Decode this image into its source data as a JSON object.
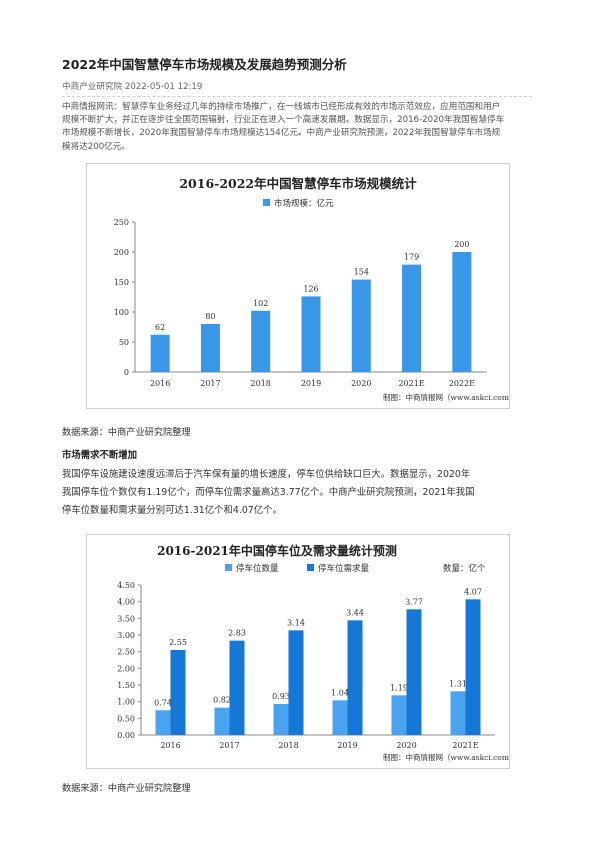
{
  "article": {
    "title": "2022年中国智慧停车市场规模及发展趋势预测分析",
    "meta": "中商产业研究院 2022-05-01 12:19",
    "intro_lines": [
      "中商情报网讯：智慧停车业务经过几年的持续市场推广，在一线城市已经形成有效的市场示范效应，应用范围和用户",
      "规模不断扩大，并正在逐步往全国范围辐射，行业正在进入一个高速发展期。数据显示，2016-2020年我国智慧停车",
      "市场规模不断增长，2020年我国智慧停车市场规模达154亿元。中商产业研究院预测，2022年我国智慧停车市场规",
      "模将达200亿元。"
    ],
    "source1": "数据来源：中商产业研究院整理",
    "section_heading": "市场需求不断增加",
    "section_lines": [
      "我国停车设施建设速度远滞后于汽车保有量的增长速度，停车位供给缺口巨大。数据显示，2020年",
      "我国停车位个数仅有1.19亿个，而停车位需求量高达3.77亿个。中商产业研究院预测，2021年我国",
      "停车位数量和需求量分别可达1.31亿个和4.07亿个。"
    ],
    "source2": "数据来源：中商产业研究院整理"
  },
  "chart_data": [
    {
      "type": "bar",
      "title": "2016-2022年中国智慧停车市场规模统计",
      "categories": [
        "2016",
        "2017",
        "2018",
        "2019",
        "2020",
        "2021E",
        "2022E"
      ],
      "series": [
        {
          "name": "市场规模：亿元",
          "values": [
            62,
            80,
            102,
            126,
            154,
            179,
            200
          ]
        }
      ],
      "data_labels": [
        "62",
        "80",
        "102",
        "126",
        "154",
        "179",
        "200"
      ],
      "ylim": [
        0,
        250
      ],
      "yticks": [
        "0",
        "50",
        "100",
        "150",
        "200",
        "250"
      ],
      "yticks_values": [
        0,
        50,
        100,
        150,
        200,
        250
      ],
      "legend_position": "top-center",
      "grid": false,
      "footer": "制图：中商情报网（www.askci.com）",
      "colors": {
        "bar": "#3a97e8"
      }
    },
    {
      "type": "bar",
      "title": "2016-2021年中国停车位及需求量统计预测",
      "unit_label": "数量：亿个",
      "categories": [
        "2016",
        "2017",
        "2018",
        "2019",
        "2020",
        "2021E"
      ],
      "series": [
        {
          "name": "停车位数量",
          "values": [
            0.74,
            0.82,
            0.93,
            1.04,
            1.19,
            1.31
          ],
          "labels": [
            "0.74",
            "0.82",
            "0.93",
            "1.04",
            "1.19",
            "1.31"
          ]
        },
        {
          "name": "停车位需求量",
          "values": [
            2.55,
            2.83,
            3.14,
            3.44,
            3.77,
            4.07
          ],
          "labels": [
            "2.55",
            "2.83",
            "3.14",
            "3.44",
            "3.77",
            "4.07"
          ]
        }
      ],
      "ylim": [
        0,
        4.5
      ],
      "yticks": [
        "0.00",
        "0.50",
        "1.00",
        "1.50",
        "2.00",
        "2.50",
        "3.00",
        "3.50",
        "4.00",
        "4.50"
      ],
      "yticks_values": [
        0,
        0.5,
        1,
        1.5,
        2,
        2.5,
        3,
        3.5,
        4,
        4.5
      ],
      "legend_position": "top-center",
      "grid": false,
      "footer": "制图：中商情报网（www.askci.com）",
      "colors": {
        "series1": "#4aa3ee",
        "series2": "#1577d6"
      }
    }
  ]
}
